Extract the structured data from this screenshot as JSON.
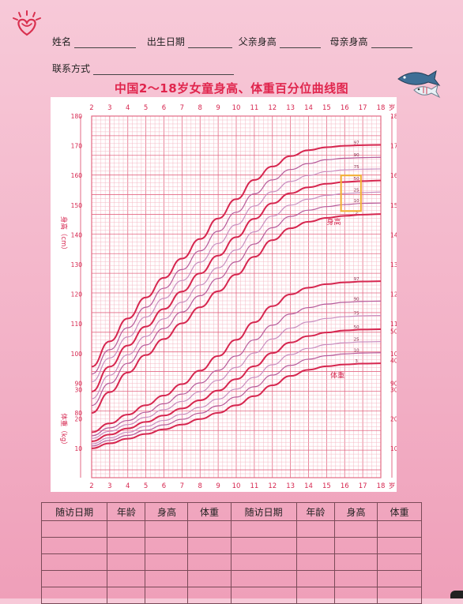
{
  "header": {
    "name_label": "姓名",
    "birth_label": "出生日期",
    "father_label": "父亲身高",
    "mother_label": "母亲身高",
    "contact_label": "联系方式"
  },
  "chart_data": {
    "type": "line",
    "title": "中国2～18岁女童身高、体重百分位曲线图",
    "x_ticks": [
      2,
      3,
      4,
      5,
      6,
      7,
      8,
      9,
      10,
      11,
      12,
      13,
      14,
      15,
      16,
      17,
      18
    ],
    "x_unit": "岁",
    "xlim": [
      2,
      18
    ],
    "grid": true,
    "height_axis": {
      "label": "身高（cm）",
      "ylim": [
        80,
        180
      ],
      "ticks": [
        80,
        90,
        100,
        110,
        120,
        130,
        140,
        150,
        160,
        170,
        180
      ],
      "curve_label": "身高",
      "highlight_box": {
        "x": [
          15.8,
          16.9
        ],
        "y": [
          148,
          160
        ]
      }
    },
    "weight_axis": {
      "label": "体重（kg）",
      "ylim": [
        5,
        95
      ],
      "ticks": [
        10,
        20,
        30,
        40,
        50,
        60,
        70,
        80,
        90
      ],
      "curve_label": "体重"
    },
    "ages": [
      2,
      3,
      4,
      5,
      6,
      7,
      8,
      9,
      10,
      11,
      12,
      13,
      14,
      15,
      16,
      17,
      18
    ],
    "height_percentiles": [
      {
        "name": "97",
        "values": [
          95.6,
          104.1,
          111.8,
          118.9,
          125.5,
          132.0,
          138.6,
          145.5,
          152.0,
          158.5,
          163.0,
          166.5,
          168.5,
          169.5,
          170.0,
          170.2,
          170.3
        ]
      },
      {
        "name": "90",
        "values": [
          93.1,
          101.3,
          108.7,
          115.6,
          122.0,
          128.3,
          134.6,
          141.2,
          147.6,
          153.8,
          158.5,
          162.0,
          164.0,
          165.3,
          165.8,
          166.0,
          166.1
        ]
      },
      {
        "name": "75",
        "values": [
          90.5,
          98.5,
          105.6,
          112.3,
          118.6,
          124.6,
          130.8,
          137.1,
          143.4,
          149.7,
          154.5,
          158.0,
          160.0,
          161.3,
          161.9,
          162.1,
          162.2
        ]
      },
      {
        "name": "50",
        "values": [
          87.2,
          95.6,
          102.7,
          109.1,
          115.0,
          120.9,
          127.0,
          133.0,
          139.2,
          145.4,
          150.6,
          154.0,
          156.0,
          157.2,
          157.8,
          158.1,
          158.3
        ]
      },
      {
        "name": "25",
        "values": [
          84.8,
          92.7,
          99.6,
          105.8,
          111.7,
          117.3,
          123.1,
          128.9,
          134.9,
          141.0,
          146.3,
          150.0,
          152.0,
          153.3,
          153.9,
          154.2,
          154.4
        ]
      },
      {
        "name": "10",
        "values": [
          82.5,
          90.0,
          96.7,
          102.9,
          108.5,
          114.0,
          119.5,
          125.3,
          130.9,
          136.9,
          142.4,
          146.2,
          148.3,
          149.5,
          150.2,
          150.6,
          150.7
        ]
      },
      {
        "name": "3",
        "values": [
          80.0,
          87.0,
          93.6,
          99.5,
          104.9,
          110.2,
          115.6,
          121.0,
          126.6,
          132.6,
          138.2,
          142.2,
          144.4,
          145.7,
          146.4,
          146.8,
          147.0
        ]
      }
    ],
    "weight_percentiles": [
      {
        "name": "97",
        "values": [
          15.5,
          18.5,
          21.5,
          24.7,
          28.0,
          31.9,
          36.5,
          41.5,
          47.0,
          53.0,
          58.5,
          62.5,
          64.8,
          66.0,
          66.6,
          66.9,
          67.0
        ]
      },
      {
        "name": "90",
        "values": [
          14.3,
          17.0,
          19.5,
          22.3,
          25.2,
          28.5,
          32.3,
          36.6,
          41.5,
          47.0,
          52.0,
          55.8,
          58.0,
          59.2,
          59.8,
          60.1,
          60.2
        ]
      },
      {
        "name": "75",
        "values": [
          13.4,
          15.8,
          18.1,
          20.6,
          23.2,
          26.0,
          29.3,
          33.2,
          37.6,
          42.5,
          47.3,
          51.0,
          53.1,
          54.3,
          54.9,
          55.2,
          55.3
        ]
      },
      {
        "name": "50",
        "values": [
          12.4,
          14.7,
          16.8,
          19.0,
          21.2,
          23.6,
          26.4,
          29.7,
          33.6,
          38.0,
          42.5,
          46.1,
          48.3,
          49.5,
          50.2,
          50.5,
          50.6
        ]
      },
      {
        "name": "25",
        "values": [
          11.5,
          13.6,
          15.5,
          17.5,
          19.5,
          21.6,
          24.0,
          26.8,
          30.2,
          34.2,
          38.5,
          42.0,
          44.1,
          45.4,
          46.0,
          46.3,
          46.4
        ]
      },
      {
        "name": "10",
        "values": [
          10.8,
          12.7,
          14.4,
          16.2,
          18.0,
          19.9,
          22.0,
          24.5,
          27.5,
          31.0,
          35.0,
          38.3,
          40.4,
          41.6,
          42.2,
          42.5,
          42.6
        ]
      },
      {
        "name": "3",
        "values": [
          10.0,
          11.7,
          13.3,
          14.9,
          16.5,
          18.1,
          20.0,
          22.1,
          24.7,
          27.8,
          31.5,
          34.7,
          36.8,
          38.0,
          38.6,
          38.9,
          39.0
        ]
      }
    ]
  },
  "record_table": {
    "headers": [
      "随访日期",
      "年龄",
      "身高",
      "体重",
      "随访日期",
      "年龄",
      "身高",
      "体重"
    ],
    "rows": [
      [
        "",
        "",
        "",
        "",
        "",
        "",
        "",
        ""
      ],
      [
        "",
        "",
        "",
        "",
        "",
        "",
        "",
        ""
      ],
      [
        "",
        "",
        "",
        "",
        "",
        "",
        "",
        ""
      ],
      [
        "",
        "",
        "",
        "",
        "",
        "",
        "",
        ""
      ],
      [
        "",
        "",
        "",
        "",
        "",
        "",
        "",
        ""
      ]
    ]
  },
  "colors": {
    "grid_minor": "#f4b8c4",
    "grid_major": "#e36a84",
    "curve_main": "#d6264f",
    "curve_mid": "#b65b9b",
    "curve_light": "#c98ec0",
    "highlight": "#f3b233",
    "title": "#e0254d"
  }
}
